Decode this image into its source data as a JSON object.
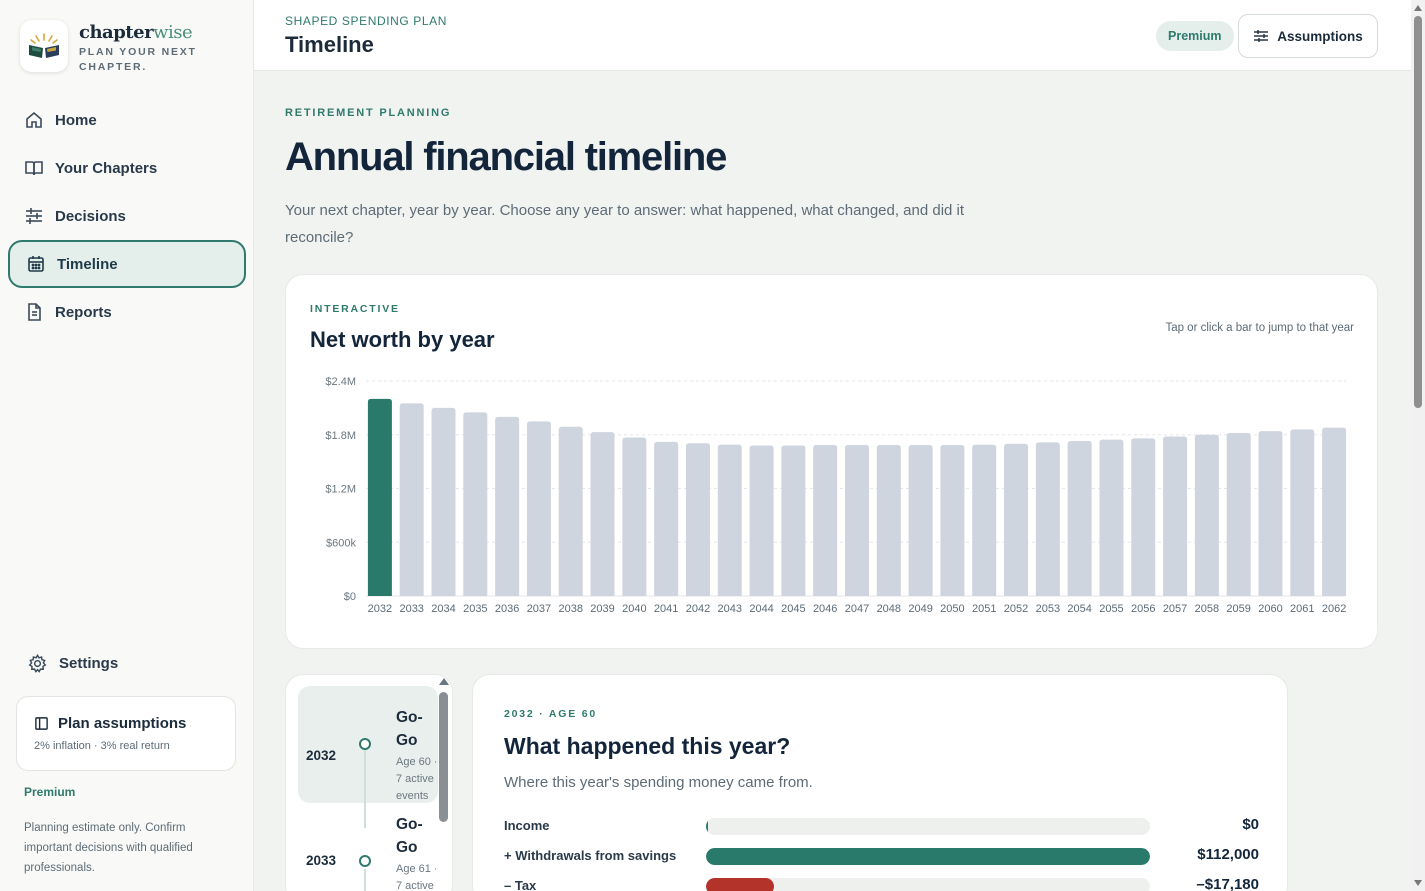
{
  "brand": {
    "name_main": "chapter",
    "name_accent": "wise",
    "tagline": "PLAN YOUR NEXT CHAPTER."
  },
  "sidebar": {
    "items": [
      {
        "label": "Home",
        "icon": "home-icon"
      },
      {
        "label": "Your Chapters",
        "icon": "book-icon"
      },
      {
        "label": "Decisions",
        "icon": "sliders-icon"
      },
      {
        "label": "Timeline",
        "icon": "calendar-icon",
        "active": true
      },
      {
        "label": "Reports",
        "icon": "document-icon"
      }
    ],
    "settings_label": "Settings",
    "assumptions_card": {
      "title": "Plan assumptions",
      "subtitle": "2% inflation · 3% real return"
    },
    "tier": "Premium",
    "disclaimer": "Planning estimate only. Confirm important decisions with qualified professionals."
  },
  "header": {
    "eyebrow": "SHAPED SPENDING PLAN",
    "title": "Timeline",
    "premium_badge": "Premium",
    "assumptions_button": "Assumptions"
  },
  "main": {
    "eyebrow": "RETIREMENT PLANNING",
    "title": "Annual financial timeline",
    "description": "Your next chapter, year by year. Choose any year to answer: what happened, what changed, and did it reconcile?"
  },
  "chart": {
    "eyebrow": "INTERACTIVE",
    "title": "Net worth by year",
    "hint": "Tap or click a bar to jump to that year"
  },
  "chart_data": {
    "type": "bar",
    "categories": [
      "2032",
      "2033",
      "2034",
      "2035",
      "2036",
      "2037",
      "2038",
      "2039",
      "2040",
      "2041",
      "2042",
      "2043",
      "2044",
      "2045",
      "2046",
      "2047",
      "2048",
      "2049",
      "2050",
      "2051",
      "2052",
      "2053",
      "2054",
      "2055",
      "2056",
      "2057",
      "2058",
      "2059",
      "2060",
      "2061",
      "2062"
    ],
    "values": [
      2200000,
      2150000,
      2100000,
      2050000,
      2000000,
      1950000,
      1890000,
      1830000,
      1770000,
      1720000,
      1705000,
      1690000,
      1680000,
      1680000,
      1685000,
      1685000,
      1685000,
      1685000,
      1685000,
      1688000,
      1700000,
      1715000,
      1730000,
      1745000,
      1760000,
      1780000,
      1800000,
      1820000,
      1840000,
      1860000,
      1880000
    ],
    "ylim": [
      0,
      2400000
    ],
    "yticks": [
      "$0",
      "$600k",
      "$1.2M",
      "$1.8M",
      "$2.4M"
    ],
    "selected": "2032",
    "selected_color": "#2a7a6c",
    "bar_color": "#cfd5de",
    "grid": true
  },
  "years": [
    {
      "year": "2032",
      "phase": "Go-Go",
      "meta": [
        "Age 60 ·",
        "7 active",
        "events"
      ],
      "active": true
    },
    {
      "year": "2033",
      "phase": "Go-Go",
      "meta": [
        "Age 61 ·",
        "7 active"
      ]
    }
  ],
  "detail": {
    "eyebrow": "2032 · AGE 60",
    "title": "What happened this year?",
    "subtitle": "Where this year's spending money came from.",
    "flows": [
      {
        "label": "Income",
        "value": "$0",
        "fraction": 0.0,
        "color": "#2a7a6c"
      },
      {
        "label": "+ Withdrawals from savings",
        "value": "$112,000",
        "fraction": 1.0,
        "color": "#2a7a6c"
      },
      {
        "label": "– Tax",
        "value": "–$17,180",
        "fraction": 0.153,
        "color": "#b3322a"
      }
    ]
  }
}
